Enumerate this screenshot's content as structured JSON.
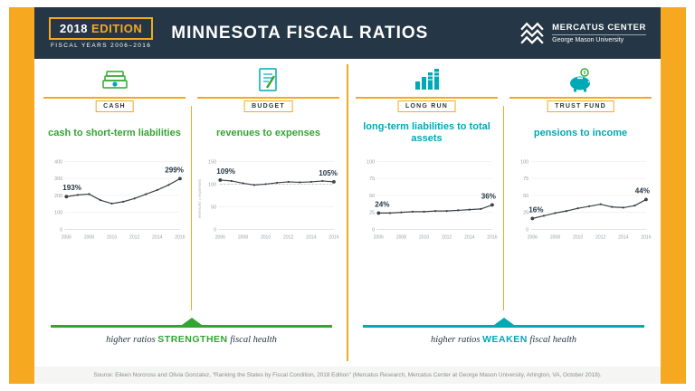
{
  "header": {
    "edition_year": "2018",
    "edition_word": "EDITION",
    "fiscal_years": "FISCAL YEARS 2006–2016",
    "title": "MINNESOTA FISCAL RATIOS",
    "logo_name": "MERCATUS CENTER",
    "logo_sub": "George Mason University"
  },
  "colors": {
    "navy": "#253746",
    "gold": "#f6a821",
    "green": "#33a532",
    "teal": "#00a9b5"
  },
  "panels": [
    {
      "label": "CASH",
      "icon": "cash-icon",
      "title": "cash to short-term liabilities"
    },
    {
      "label": "BUDGET",
      "icon": "budget-icon",
      "title": "revenues to expenses"
    },
    {
      "label": "LONG RUN",
      "icon": "long-run-icon",
      "title": "long-term liabilities to total assets"
    },
    {
      "label": "TRUST FUND",
      "icon": "trust-fund-icon",
      "title": "pensions to income"
    }
  ],
  "chart_data": [
    {
      "type": "line",
      "title": "cash to short-term liabilities",
      "x": [
        2006,
        2007,
        2008,
        2009,
        2010,
        2011,
        2012,
        2013,
        2014,
        2015,
        2016
      ],
      "values": [
        193,
        203,
        208,
        172,
        152,
        163,
        182,
        207,
        232,
        262,
        299
      ],
      "ylim": [
        0,
        400
      ],
      "yticks": [
        400,
        300,
        200,
        100,
        0
      ],
      "xtick_labels": [
        "2006",
        "2008",
        "2010",
        "2012",
        "2014",
        "2016"
      ],
      "start_label": "193%",
      "end_label": "299%"
    },
    {
      "type": "line",
      "title": "revenues to expenses",
      "x": [
        2006,
        2007,
        2008,
        2009,
        2010,
        2011,
        2012,
        2013,
        2014,
        2015,
        2016
      ],
      "values": [
        109,
        107,
        102,
        98,
        100,
        103,
        105,
        104,
        105,
        107,
        105
      ],
      "ylim": [
        0,
        150
      ],
      "yticks": [
        150,
        100,
        50,
        0
      ],
      "dashed_at": 100,
      "note": "revenues = expenses",
      "xtick_labels": [
        "2006",
        "2008",
        "2010",
        "2012",
        "2014",
        "2016"
      ],
      "start_label": "109%",
      "end_label": "105%"
    },
    {
      "type": "line",
      "title": "long-term liabilities to total assets",
      "x": [
        2006,
        2007,
        2008,
        2009,
        2010,
        2011,
        2012,
        2013,
        2014,
        2015,
        2016
      ],
      "values": [
        24,
        24,
        25,
        26,
        26,
        27,
        27,
        28,
        29,
        30,
        36
      ],
      "ylim": [
        0,
        100
      ],
      "yticks": [
        100,
        75,
        50,
        25,
        0
      ],
      "xtick_labels": [
        "2006",
        "2008",
        "2010",
        "2012",
        "2014",
        "2016"
      ],
      "start_label": "24%",
      "end_label": "36%"
    },
    {
      "type": "line",
      "title": "pensions to income",
      "x": [
        2006,
        2007,
        2008,
        2009,
        2010,
        2011,
        2012,
        2013,
        2014,
        2015,
        2016
      ],
      "values": [
        16,
        20,
        24,
        27,
        31,
        34,
        37,
        33,
        32,
        35,
        44
      ],
      "ylim": [
        0,
        100
      ],
      "yticks": [
        100,
        75,
        50,
        25,
        0
      ],
      "xtick_labels": [
        "2006",
        "2008",
        "2010",
        "2012",
        "2014",
        "2016"
      ],
      "start_label": "16%",
      "end_label": "44%"
    }
  ],
  "footers": {
    "left": {
      "prefix": "higher ratios ",
      "keyword": "STRENGTHEN",
      "suffix": " fiscal health"
    },
    "right": {
      "prefix": "higher ratios ",
      "keyword": "WEAKEN",
      "suffix": " fiscal health"
    }
  },
  "source": "Source: Eileen Norcross and Olivia Gonzalez, “Ranking the States by Fiscal Condition, 2018 Edition” (Mercatus Research, Mercatus Center at George Mason University, Arlington, VA, October 2018)."
}
